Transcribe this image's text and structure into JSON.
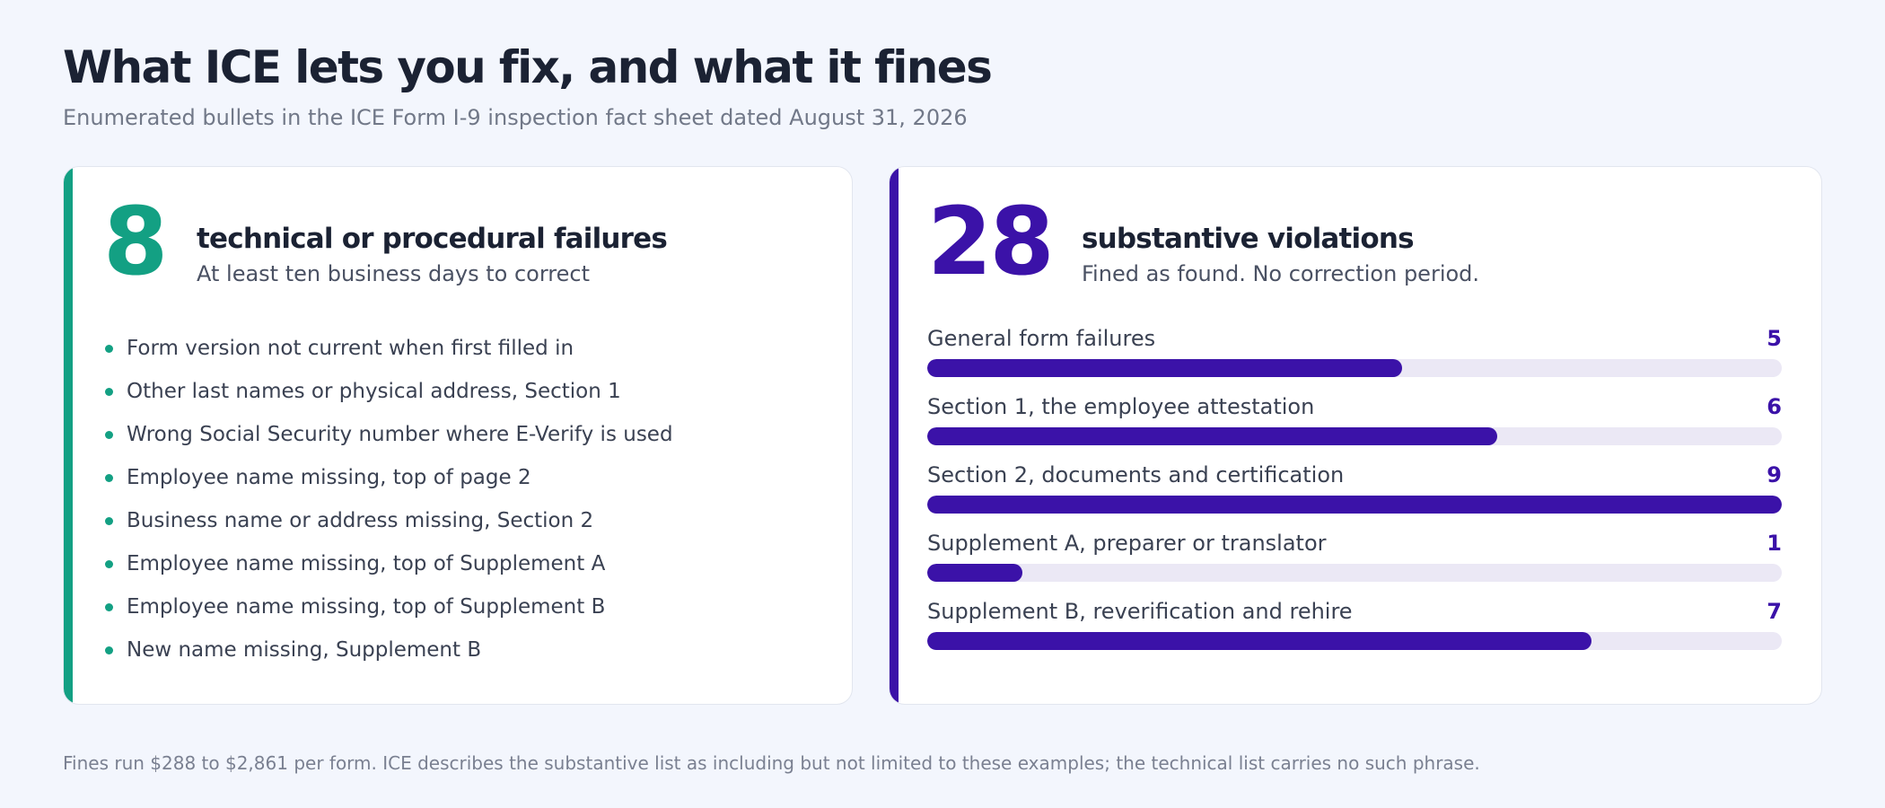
{
  "title": "What ICE lets you fix, and what it fines",
  "subtitle": "Enumerated bullets in the ICE Form I-9 inspection fact sheet dated August 31, 2026",
  "technical": {
    "count": "8",
    "heading": "technical or procedural failures",
    "subheading": "At least ten business days to correct",
    "items": [
      "Form version not current when first filled in",
      "Other last names or physical address, Section 1",
      "Wrong Social Security number where E-Verify is used",
      "Employee name missing, top of page 2",
      "Business name or address missing, Section 2",
      "Employee name missing, top of Supplement A",
      "Employee name missing, top of Supplement B",
      "New name missing, Supplement B"
    ]
  },
  "substantive": {
    "count": "28",
    "heading": "substantive violations",
    "subheading": "Fined as found. No correction period."
  },
  "chart_data": {
    "type": "bar",
    "orientation": "horizontal",
    "categories": [
      "General form failures",
      "Section 1, the employee attestation",
      "Section 2, documents and certification",
      "Supplement A, preparer or translator",
      "Supplement B, reverification and rehire"
    ],
    "values": [
      5,
      6,
      9,
      1,
      7
    ],
    "xlim": [
      0,
      9
    ],
    "grid": false,
    "bar_color": "#3b12a8",
    "track_color": "#ebe8f5"
  },
  "footnote": "Fines run $288 to $2,861 per form. ICE describes the substantive list as including but not limited to these examples; the technical list carries no such phrase.",
  "colors": {
    "technical_accent": "#13a083",
    "substantive_accent": "#3b12a8",
    "background": "#f3f6fd"
  }
}
